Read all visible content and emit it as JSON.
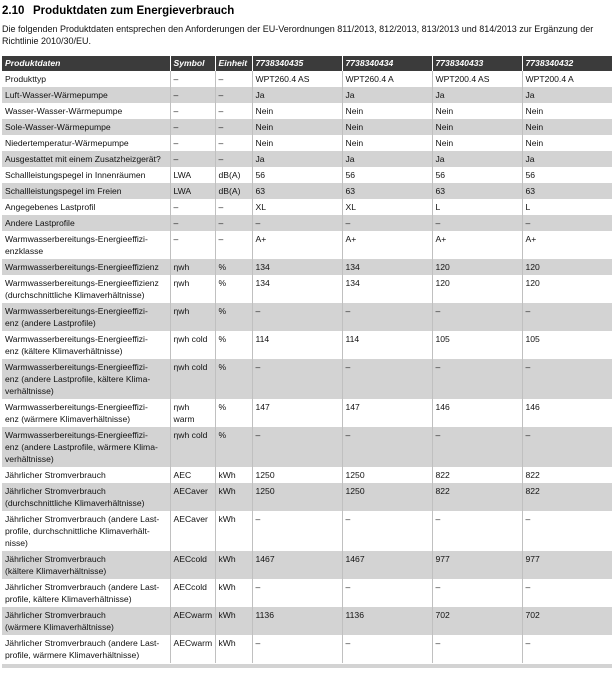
{
  "page": {
    "section_number": "2.10",
    "title": "Produktdaten zum Energieverbrauch",
    "intro": "Die folgenden Produktdaten entsprechen den Anforderungen der EU-Verordnungen 811/2013, 812/2013, 813/2013 und 814/2013 zur Ergänzung der Richtlinie 2010/30/EU."
  },
  "colors": {
    "header_bg": "#3b3b3b",
    "header_text": "#ffffff",
    "row_alt_bg": "#d3d3d3",
    "row_bg": "#ffffff",
    "divider": "#c0c0c0"
  },
  "table": {
    "columns": [
      "Produktdaten",
      "Symbol",
      "Einheit",
      "7738340435",
      "7738340434",
      "7738340433",
      "7738340432"
    ],
    "rows": [
      {
        "label": "Produkttyp",
        "symbol": "–",
        "unit": "–",
        "values": [
          "WPT260.4 AS",
          "WPT260.4 A",
          "WPT200.4 AS",
          "WPT200.4 A"
        ]
      },
      {
        "label": "Luft-Wasser-Wärmepumpe",
        "symbol": "–",
        "unit": "–",
        "values": [
          "Ja",
          "Ja",
          "Ja",
          "Ja"
        ]
      },
      {
        "label": "Wasser-Wasser-Wärmepumpe",
        "symbol": "–",
        "unit": "–",
        "values": [
          "Nein",
          "Nein",
          "Nein",
          "Nein"
        ]
      },
      {
        "label": "Sole-Wasser-Wärmepumpe",
        "symbol": "–",
        "unit": "–",
        "values": [
          "Nein",
          "Nein",
          "Nein",
          "Nein"
        ]
      },
      {
        "label": "Niedertemperatur-Wärmepumpe",
        "symbol": "–",
        "unit": "–",
        "values": [
          "Nein",
          "Nein",
          "Nein",
          "Nein"
        ]
      },
      {
        "label": "Ausgestattet mit einem Zusatzheizgerät?",
        "symbol": "–",
        "unit": "–",
        "values": [
          "Ja",
          "Ja",
          "Ja",
          "Ja"
        ]
      },
      {
        "label": "Schallleistungspegel in Innenräumen",
        "symbol": "LWA",
        "unit": "dB(A)",
        "values": [
          "56",
          "56",
          "56",
          "56"
        ]
      },
      {
        "label": "Schallleistungspegel im Freien",
        "symbol": "LWA",
        "unit": "dB(A)",
        "values": [
          "63",
          "63",
          "63",
          "63"
        ]
      },
      {
        "label": "Angegebenes Lastprofil",
        "symbol": "–",
        "unit": "–",
        "values": [
          "XL",
          "XL",
          "L",
          "L"
        ]
      },
      {
        "label": "Andere Lastprofile",
        "symbol": "–",
        "unit": "–",
        "values": [
          "–",
          "–",
          "–",
          "–"
        ]
      },
      {
        "label": "Warmwasserbereitungs-Energieeffizi-\nenzklasse",
        "symbol": "–",
        "unit": "–",
        "values": [
          "A+",
          "A+",
          "A+",
          "A+"
        ]
      },
      {
        "label": "Warmwasserbereitungs-Energieeffizienz",
        "symbol": "ηwh",
        "unit": "%",
        "values": [
          "134",
          "134",
          "120",
          "120"
        ]
      },
      {
        "label": "Warmwasserbereitungs-Energieeffizienz\n(durchschnittliche Klimaverhältnisse)",
        "symbol": "ηwh",
        "unit": "%",
        "values": [
          "134",
          "134",
          "120",
          "120"
        ]
      },
      {
        "label": "Warmwasserbereitungs-Energieeffizi-\nenz (andere Lastprofile)",
        "symbol": "ηwh",
        "unit": "%",
        "values": [
          "–",
          "–",
          "–",
          "–"
        ]
      },
      {
        "label": "Warmwasserbereitungs-Energieeffizi-\nenz (kältere Klimaverhältnisse)",
        "symbol": "ηwh cold",
        "unit": "%",
        "values": [
          "114",
          "114",
          "105",
          "105"
        ]
      },
      {
        "label": "Warmwasserbereitungs-Energieeffizi-\nenz (andere Lastprofile, kältere Klima-\nverhältnisse)",
        "symbol": "ηwh cold",
        "unit": "%",
        "values": [
          "–",
          "–",
          "–",
          "–"
        ]
      },
      {
        "label": "Warmwasserbereitungs-Energieeffizi-\nenz (wärmere Klimaverhältnisse)",
        "symbol": "ηwh warm",
        "unit": "%",
        "values": [
          "147",
          "147",
          "146",
          "146"
        ]
      },
      {
        "label": "Warmwasserbereitungs-Energieeffizi-\nenz (andere Lastprofile, wärmere Klima-\nverhältnisse)",
        "symbol": "ηwh cold",
        "unit": "%",
        "values": [
          "–",
          "–",
          "–",
          "–"
        ]
      },
      {
        "label": "Jährlicher Stromverbrauch",
        "symbol": "AEC",
        "unit": "kWh",
        "values": [
          "1250",
          "1250",
          "822",
          "822"
        ]
      },
      {
        "label": "Jährlicher Stromverbrauch\n(durchschnittliche Klimaverhältnisse)",
        "symbol": "AECaver",
        "unit": "kWh",
        "values": [
          "1250",
          "1250",
          "822",
          "822"
        ]
      },
      {
        "label": "Jährlicher Stromverbrauch (andere Last-\nprofile, durchschnittliche Klimaverhält-\nnisse)",
        "symbol": "AECaver",
        "unit": "kWh",
        "values": [
          "–",
          "–",
          "–",
          "–"
        ]
      },
      {
        "label": "Jährlicher Stromverbrauch\n(kältere Klimaverhältnisse)",
        "symbol": "AECcold",
        "unit": "kWh",
        "values": [
          "1467",
          "1467",
          "977",
          "977"
        ]
      },
      {
        "label": "Jährlicher Stromverbrauch (andere Last-\nprofile, kältere Klimaverhältnisse)",
        "symbol": "AECcold",
        "unit": "kWh",
        "values": [
          "–",
          "–",
          "–",
          "–"
        ]
      },
      {
        "label": "Jährlicher Stromverbrauch\n(wärmere Klimaverhältnisse)",
        "symbol": "AECwarm",
        "unit": "kWh",
        "values": [
          "1136",
          "1136",
          "702",
          "702"
        ]
      },
      {
        "label": "Jährlicher Stromverbrauch (andere Last-\nprofile, wärmere Klimaverhältnisse)",
        "symbol": "AECwarm",
        "unit": "kWh",
        "values": [
          "–",
          "–",
          "–",
          "–"
        ]
      }
    ]
  }
}
